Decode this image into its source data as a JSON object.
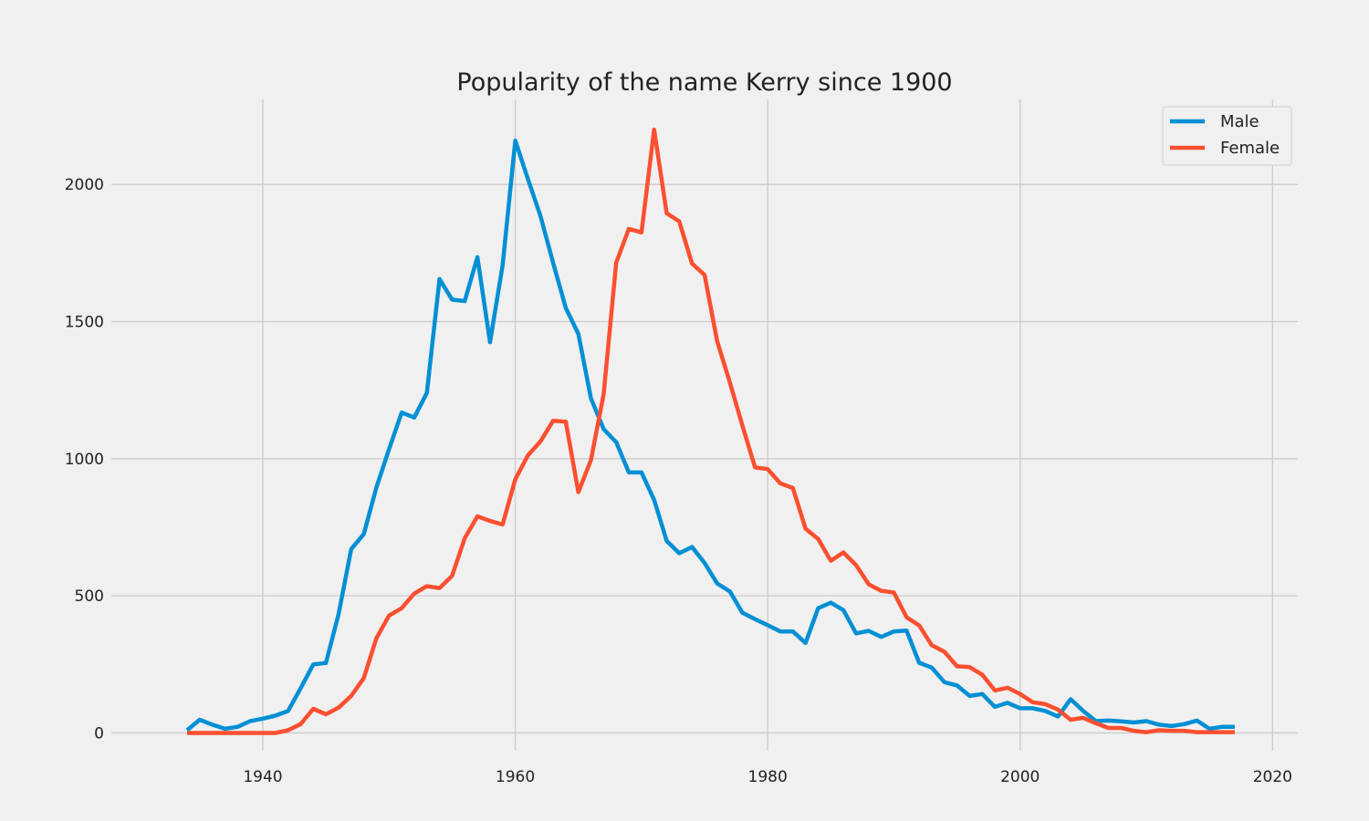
{
  "chart_data": {
    "type": "line",
    "title": "Popularity of the name Kerry since 1900",
    "xlabel": "",
    "ylabel": "",
    "xlim": [
      1928,
      2022
    ],
    "ylim": [
      -65,
      2290
    ],
    "xticks": [
      1940,
      1960,
      1980,
      2000,
      2020
    ],
    "yticks": [
      0,
      500,
      1000,
      1500,
      2000
    ],
    "grid": true,
    "legend_position": "top-right",
    "series": [
      {
        "name": "Male",
        "color": "#008fd5",
        "x": [
          1934,
          1935,
          1936,
          1937,
          1938,
          1939,
          1940,
          1941,
          1942,
          1943,
          1944,
          1945,
          1946,
          1947,
          1948,
          1949,
          1950,
          1951,
          1952,
          1953,
          1954,
          1955,
          1956,
          1957,
          1958,
          1959,
          1960,
          1961,
          1962,
          1963,
          1964,
          1965,
          1966,
          1967,
          1968,
          1969,
          1970,
          1971,
          1972,
          1973,
          1974,
          1975,
          1976,
          1977,
          1978,
          1979,
          1980,
          1981,
          1982,
          1983,
          1984,
          1985,
          1986,
          1987,
          1988,
          1989,
          1990,
          1991,
          1992,
          1993,
          1994,
          1995,
          1996,
          1997,
          1998,
          1999,
          2000,
          2001,
          2002,
          2003,
          2004,
          2005,
          2006,
          2007,
          2008,
          2009,
          2010,
          2011,
          2012,
          2013,
          2014,
          2015,
          2016,
          2017
        ],
        "values": [
          10,
          48,
          30,
          15,
          22,
          43,
          52,
          63,
          80,
          163,
          250,
          255,
          432,
          670,
          725,
          895,
          1035,
          1168,
          1150,
          1240,
          1655,
          1580,
          1575,
          1735,
          1425,
          1705,
          2160,
          2020,
          1885,
          1715,
          1550,
          1455,
          1220,
          1108,
          1060,
          950,
          950,
          850,
          700,
          655,
          678,
          620,
          545,
          516,
          438,
          415,
          393,
          370,
          370,
          328,
          455,
          475,
          448,
          363,
          372,
          350,
          370,
          373,
          256,
          238,
          185,
          173,
          135,
          142,
          95,
          110,
          90,
          90,
          80,
          60,
          123,
          80,
          43,
          45,
          42,
          38,
          43,
          30,
          25,
          32,
          45,
          15,
          22,
          22
        ]
      },
      {
        "name": "Female",
        "color": "#fc4f30",
        "x": [
          1934,
          1935,
          1936,
          1937,
          1938,
          1939,
          1940,
          1941,
          1942,
          1943,
          1944,
          1945,
          1946,
          1947,
          1948,
          1949,
          1950,
          1951,
          1952,
          1953,
          1954,
          1955,
          1956,
          1957,
          1958,
          1959,
          1960,
          1961,
          1962,
          1963,
          1964,
          1965,
          1966,
          1967,
          1968,
          1969,
          1970,
          1971,
          1972,
          1973,
          1974,
          1975,
          1976,
          1977,
          1978,
          1979,
          1980,
          1981,
          1982,
          1983,
          1984,
          1985,
          1986,
          1987,
          1988,
          1989,
          1990,
          1991,
          1992,
          1993,
          1994,
          1995,
          1996,
          1997,
          1998,
          1999,
          2000,
          2001,
          2002,
          2003,
          2004,
          2005,
          2006,
          2007,
          2008,
          2009,
          2010,
          2011,
          2012,
          2013,
          2014,
          2015,
          2016,
          2017
        ],
        "values": [
          0,
          0,
          0,
          0,
          0,
          0,
          0,
          0,
          10,
          32,
          88,
          68,
          92,
          135,
          200,
          345,
          428,
          455,
          508,
          535,
          528,
          573,
          710,
          790,
          773,
          760,
          925,
          1012,
          1063,
          1138,
          1135,
          878,
          995,
          1235,
          1715,
          1838,
          1825,
          2200,
          1895,
          1865,
          1712,
          1670,
          1428,
          1278,
          1120,
          968,
          962,
          910,
          893,
          745,
          707,
          628,
          658,
          612,
          542,
          518,
          512,
          422,
          392,
          320,
          296,
          243,
          240,
          212,
          155,
          165,
          142,
          112,
          105,
          85,
          48,
          55,
          35,
          18,
          18,
          8,
          3,
          10,
          8,
          8,
          3,
          3,
          3,
          3
        ]
      }
    ]
  }
}
